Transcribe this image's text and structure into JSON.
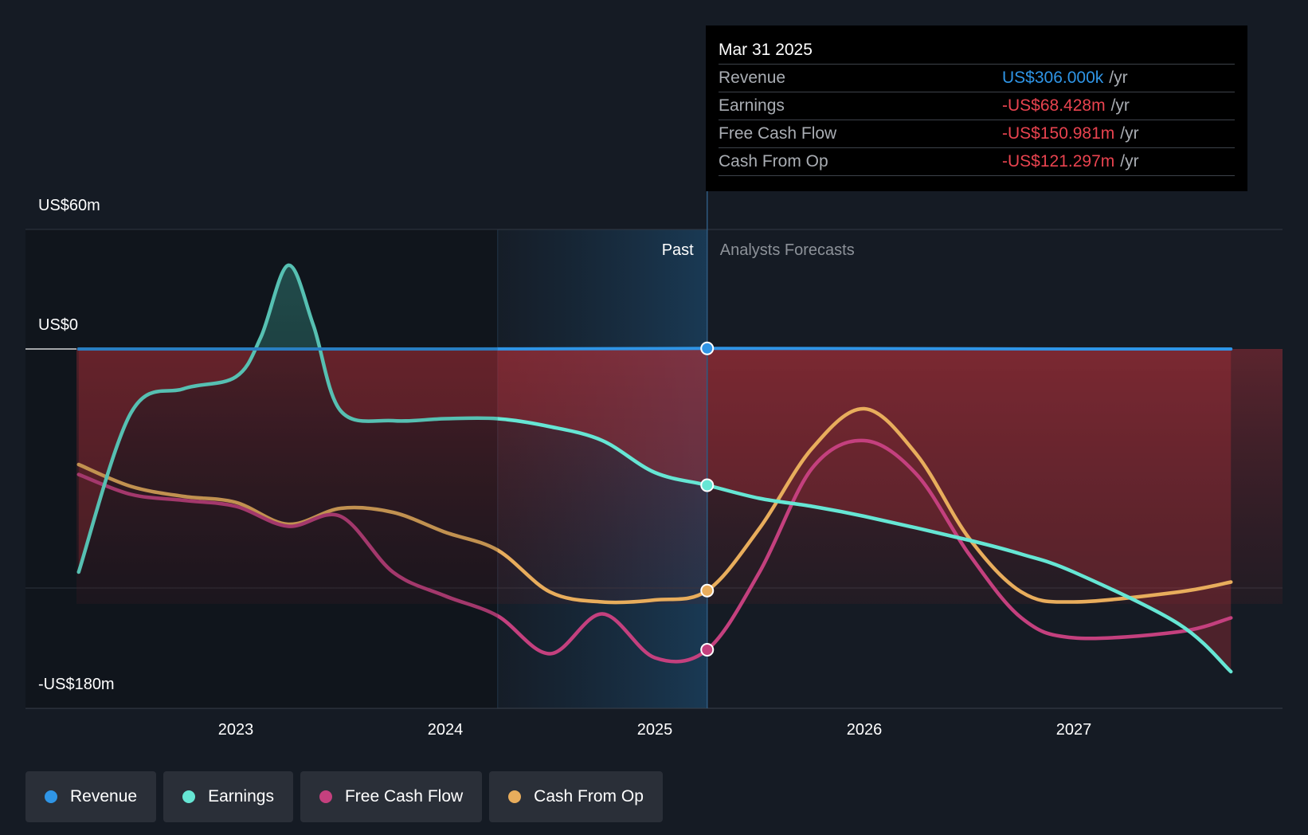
{
  "tooltip": {
    "date": "Mar 31 2025",
    "rows": [
      {
        "name": "Revenue",
        "value": "US$306.000k",
        "unit": "/yr",
        "color": "#2f95e6"
      },
      {
        "name": "Earnings",
        "value": "-US$68.428m",
        "unit": "/yr",
        "color": "#e8434f"
      },
      {
        "name": "Free Cash Flow",
        "value": "-US$150.981m",
        "unit": "/yr",
        "color": "#e8434f"
      },
      {
        "name": "Cash From Op",
        "value": "-US$121.297m",
        "unit": "/yr",
        "color": "#e8434f"
      }
    ]
  },
  "regions": {
    "past": "Past",
    "forecast": "Analysts Forecasts"
  },
  "legend": [
    {
      "name": "Revenue",
      "color": "#2f95e6"
    },
    {
      "name": "Earnings",
      "color": "#66e6d4"
    },
    {
      "name": "Free Cash Flow",
      "color": "#c4407e"
    },
    {
      "name": "Cash From Op",
      "color": "#e8ad5c"
    }
  ],
  "chart_data": {
    "type": "line",
    "y_labels": [
      "US$60m",
      "US$0",
      "-US$180m"
    ],
    "ylim": [
      -180,
      60
    ],
    "xlim": [
      2022.0,
      2028.0
    ],
    "x_ticks": [
      2023,
      2024,
      2025,
      2026,
      2027
    ],
    "x_tick_labels": [
      "2023",
      "2024",
      "2025",
      "2026",
      "2027"
    ],
    "highlight_x": 2025.25,
    "past_band_x": [
      2024.25,
      2025.25
    ],
    "legend_position": "bottom",
    "series": [
      {
        "name": "Revenue",
        "color": "#2f95e6",
        "points": [
          [
            2022.25,
            0
          ],
          [
            2023.0,
            0
          ],
          [
            2024.0,
            0
          ],
          [
            2025.0,
            0.2
          ],
          [
            2025.25,
            0.3
          ],
          [
            2026.0,
            0.2
          ],
          [
            2027.0,
            0
          ],
          [
            2027.75,
            0
          ]
        ]
      },
      {
        "name": "Earnings",
        "color": "#66e6d4",
        "points": [
          [
            2022.25,
            -112
          ],
          [
            2022.5,
            -32
          ],
          [
            2022.75,
            -20
          ],
          [
            2023.0,
            -14
          ],
          [
            2023.12,
            6
          ],
          [
            2023.25,
            42
          ],
          [
            2023.37,
            12
          ],
          [
            2023.5,
            -31
          ],
          [
            2023.75,
            -36
          ],
          [
            2024.0,
            -35
          ],
          [
            2024.25,
            -35
          ],
          [
            2024.5,
            -39
          ],
          [
            2024.75,
            -46
          ],
          [
            2025.0,
            -62
          ],
          [
            2025.25,
            -68.4
          ],
          [
            2025.5,
            -75
          ],
          [
            2025.75,
            -79
          ],
          [
            2026.0,
            -84
          ],
          [
            2026.5,
            -96
          ],
          [
            2026.75,
            -103
          ],
          [
            2027.0,
            -112
          ],
          [
            2027.5,
            -138
          ],
          [
            2027.75,
            -162
          ]
        ]
      },
      {
        "name": "Free Cash Flow",
        "color": "#c4407e",
        "points": [
          [
            2022.25,
            -63
          ],
          [
            2022.5,
            -73
          ],
          [
            2022.75,
            -76
          ],
          [
            2023.0,
            -79
          ],
          [
            2023.25,
            -89
          ],
          [
            2023.5,
            -84
          ],
          [
            2023.75,
            -112
          ],
          [
            2024.0,
            -124
          ],
          [
            2024.25,
            -134
          ],
          [
            2024.5,
            -153
          ],
          [
            2024.75,
            -133
          ],
          [
            2025.0,
            -155
          ],
          [
            2025.25,
            -151
          ],
          [
            2025.5,
            -112
          ],
          [
            2025.75,
            -60
          ],
          [
            2026.0,
            -46
          ],
          [
            2026.25,
            -63
          ],
          [
            2026.5,
            -103
          ],
          [
            2026.75,
            -135
          ],
          [
            2027.0,
            -145
          ],
          [
            2027.5,
            -142
          ],
          [
            2027.75,
            -135
          ]
        ]
      },
      {
        "name": "Cash From Op",
        "color": "#e8ad5c",
        "points": [
          [
            2022.25,
            -58
          ],
          [
            2022.5,
            -69
          ],
          [
            2022.75,
            -74
          ],
          [
            2023.0,
            -77
          ],
          [
            2023.25,
            -88
          ],
          [
            2023.5,
            -80
          ],
          [
            2023.75,
            -82
          ],
          [
            2024.0,
            -92
          ],
          [
            2024.25,
            -101
          ],
          [
            2024.5,
            -122
          ],
          [
            2024.75,
            -127
          ],
          [
            2025.0,
            -126
          ],
          [
            2025.25,
            -121.3
          ],
          [
            2025.5,
            -90
          ],
          [
            2025.75,
            -50
          ],
          [
            2026.0,
            -30
          ],
          [
            2026.25,
            -53
          ],
          [
            2026.5,
            -95
          ],
          [
            2026.75,
            -122
          ],
          [
            2027.0,
            -127
          ],
          [
            2027.5,
            -122
          ],
          [
            2027.75,
            -117
          ]
        ]
      }
    ]
  }
}
